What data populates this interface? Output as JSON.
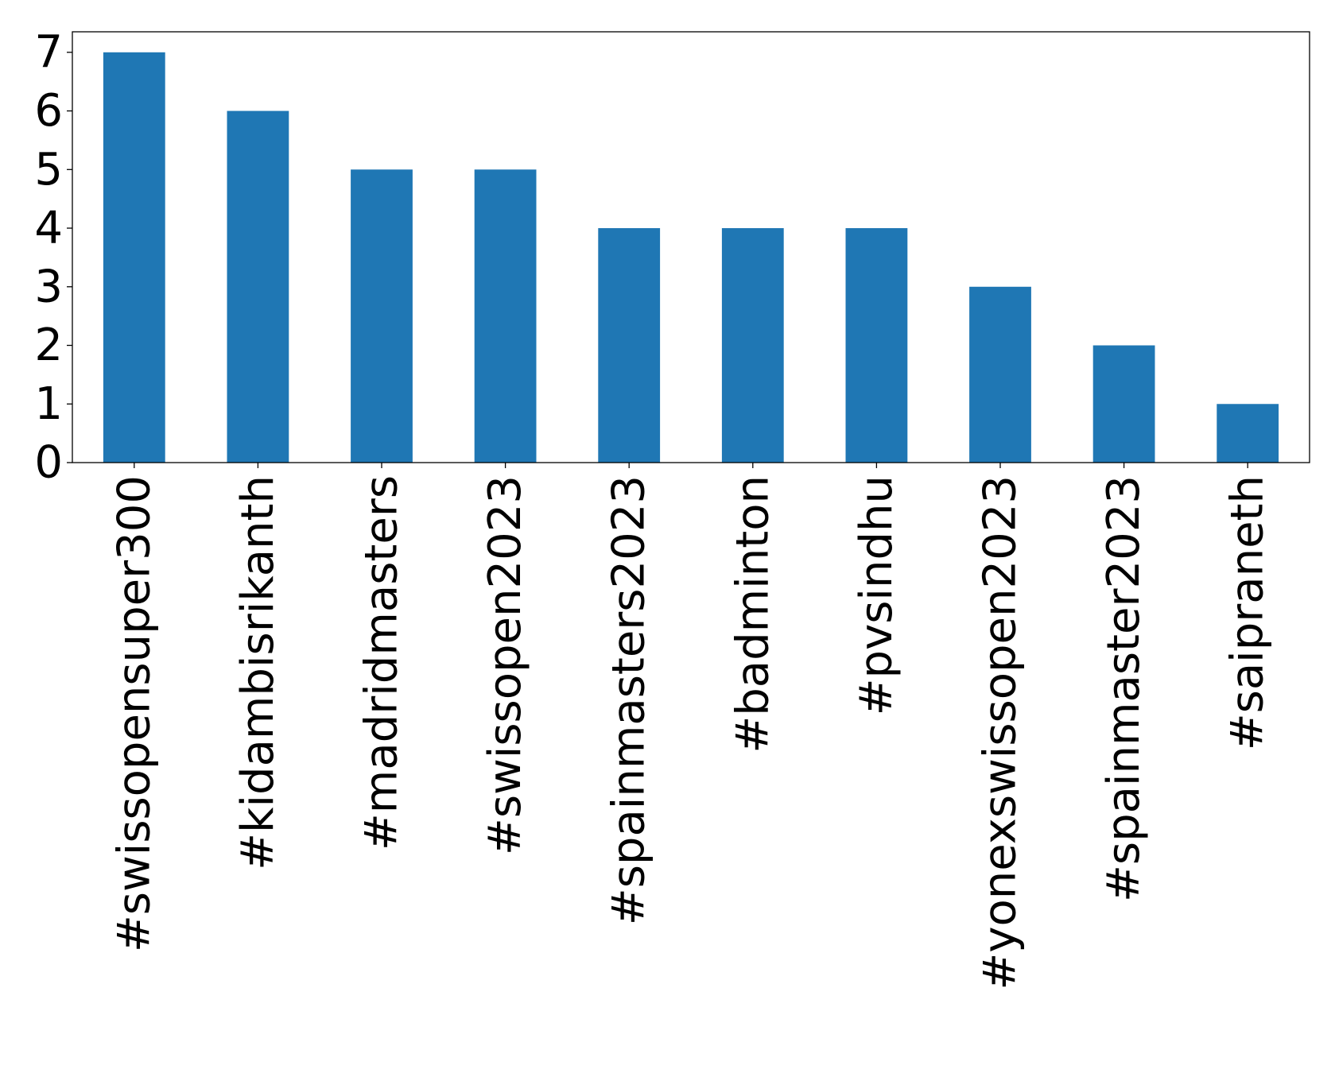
{
  "chart_data": {
    "type": "bar",
    "title": "",
    "xlabel": "",
    "ylabel": "",
    "categories": [
      "#swissopensuper300",
      "#kidambisrikanth",
      "#madridmasters",
      "#swissopen2023",
      "#spainmasters2023",
      "#badminton",
      "#pvsindhu",
      "#yonexswissopen2023",
      "#spainmaster2023",
      "#saipraneth"
    ],
    "values": [
      7,
      6,
      5,
      5,
      4,
      4,
      4,
      3,
      2,
      1
    ],
    "ylim": [
      0,
      7.35
    ],
    "yticks": [
      "0",
      "1",
      "2",
      "3",
      "4",
      "5",
      "6",
      "7"
    ],
    "grid": false,
    "legend": "none",
    "bar_color": "#1f77b4"
  }
}
